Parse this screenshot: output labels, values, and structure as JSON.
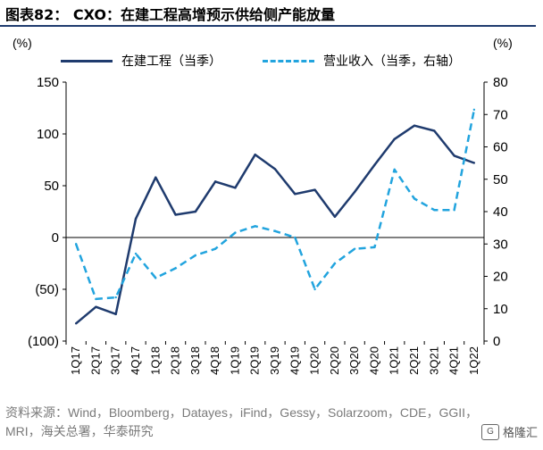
{
  "title": "图表82： CXO：在建工程高增预示供给侧产能放量",
  "units": {
    "left": "(%)",
    "right": "(%)"
  },
  "source": "资料来源：Wind，Bloomberg，Datayes，iFind，Gessy，Solarzoom，CDE，GGII，MRI，海关总署，华泰研究",
  "watermark": "格隆汇",
  "colors": {
    "series1": "#1f3b6e",
    "series2": "#22a4de",
    "title_rule": "#1f3b6e"
  },
  "chart_data": {
    "type": "line",
    "categories": [
      "1Q17",
      "2Q17",
      "3Q17",
      "4Q17",
      "1Q18",
      "2Q18",
      "3Q18",
      "4Q18",
      "1Q19",
      "2Q19",
      "3Q19",
      "4Q19",
      "1Q20",
      "2Q20",
      "3Q20",
      "4Q20",
      "1Q21",
      "2Q21",
      "3Q21",
      "4Q21",
      "1Q22"
    ],
    "series": [
      {
        "name": "在建工程（当季）",
        "axis": "left",
        "style": "solid",
        "values": [
          -83,
          -67,
          -74,
          18,
          58,
          22,
          25,
          54,
          48,
          80,
          66,
          42,
          46,
          20,
          44,
          70,
          95,
          108,
          103,
          79,
          72
        ]
      },
      {
        "name": "营业收入（当季，右轴）",
        "axis": "right",
        "style": "dashed",
        "values": [
          30,
          13,
          13.5,
          27,
          19.5,
          22.5,
          26.5,
          28.5,
          33.5,
          35.5,
          34,
          32,
          16,
          24,
          28.5,
          29,
          53,
          44,
          40.5,
          40.5,
          71.5
        ]
      }
    ],
    "left_axis": {
      "ylim": [
        -100,
        150
      ],
      "ticks": [
        150,
        100,
        50,
        0,
        -50,
        -100
      ],
      "tick_labels": [
        "150",
        "100",
        "50",
        "0",
        "(50)",
        "(100)"
      ]
    },
    "right_axis": {
      "ylim": [
        0,
        80
      ],
      "ticks": [
        80,
        70,
        60,
        50,
        40,
        30,
        20,
        10,
        0
      ],
      "tick_labels": [
        "80",
        "70",
        "60",
        "50",
        "40",
        "30",
        "20",
        "10",
        "0"
      ]
    },
    "grid": false,
    "legend_position": "top"
  }
}
